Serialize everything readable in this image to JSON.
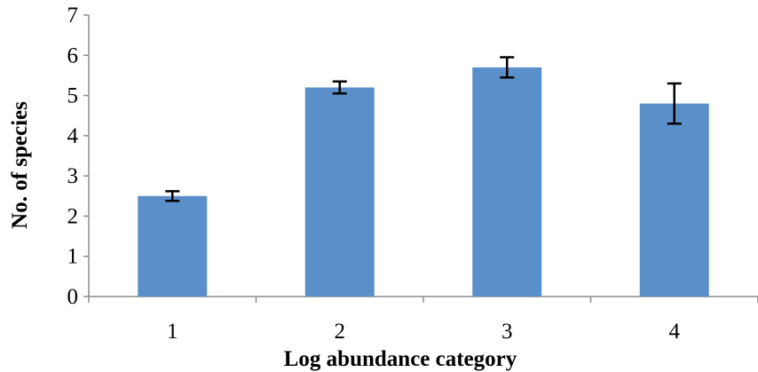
{
  "chart_data": {
    "type": "bar",
    "title": "",
    "xlabel": "Log abundance category",
    "ylabel": "No. of species",
    "categories": [
      "1",
      "2",
      "3",
      "4"
    ],
    "values": [
      2.5,
      5.2,
      5.7,
      4.8
    ],
    "error": [
      0.12,
      0.15,
      0.25,
      0.5
    ],
    "ylim": [
      0,
      7
    ],
    "yticks": [
      "0",
      "1",
      "2",
      "3",
      "4",
      "5",
      "6",
      "7"
    ],
    "grid": false,
    "legend": "none",
    "bar_color": "#5b8fc9",
    "error_color": "#000000"
  }
}
